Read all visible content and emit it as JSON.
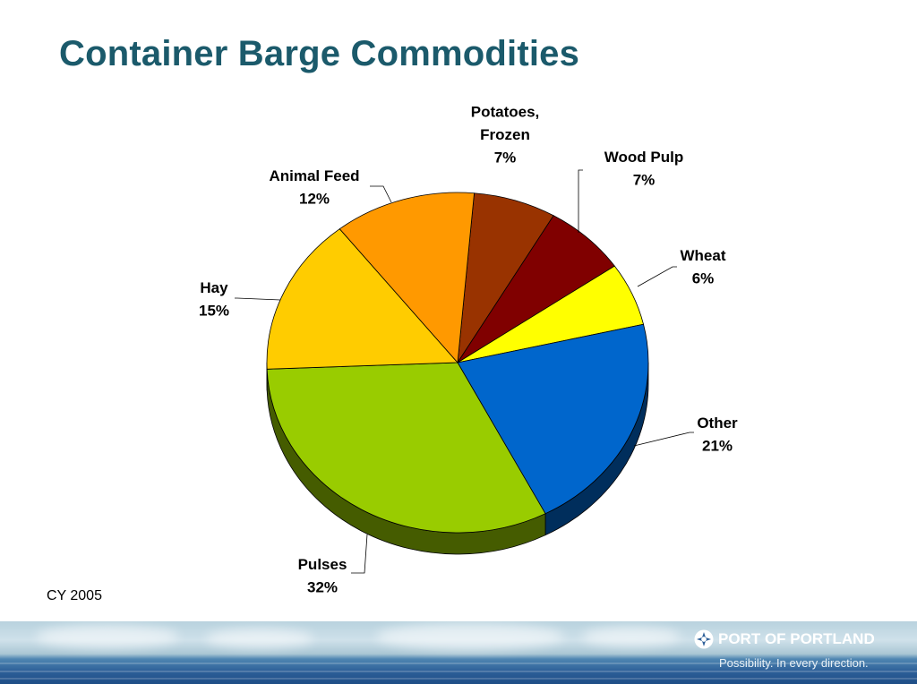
{
  "slide": {
    "title": "Container Barge Commodities",
    "note": "CY 2005"
  },
  "footer": {
    "brand": "PORT OF PORTLAND",
    "tagline": "Possibility. In every direction.",
    "logo_icon": "port-of-portland-logo-icon"
  },
  "chart_data": {
    "type": "pie",
    "style": "3d-tilted",
    "unit": "%",
    "slices": [
      {
        "label": "Potatoes, Frozen",
        "value": 7,
        "color": "#993300"
      },
      {
        "label": "Wood Pulp",
        "value": 7,
        "color": "#800000"
      },
      {
        "label": "Wheat",
        "value": 6,
        "color": "#ffff00"
      },
      {
        "label": "Other",
        "value": 21,
        "color": "#0066cc"
      },
      {
        "label": "Pulses",
        "value": 32,
        "color": "#99cc00"
      },
      {
        "label": "Hay",
        "value": 15,
        "color": "#ffcc00"
      },
      {
        "label": "Animal Feed",
        "value": 12,
        "color": "#ff9900"
      }
    ],
    "data_labels": [
      {
        "lines": [
          "Potatoes,",
          "Frozen"
        ],
        "value_text": "7%"
      },
      {
        "lines": [
          "Wood Pulp"
        ],
        "value_text": "7%"
      },
      {
        "lines": [
          "Wheat"
        ],
        "value_text": "6%"
      },
      {
        "lines": [
          "Other"
        ],
        "value_text": "21%"
      },
      {
        "lines": [
          "Pulses"
        ],
        "value_text": "32%"
      },
      {
        "lines": [
          "Hay"
        ],
        "value_text": "15%"
      },
      {
        "lines": [
          "Animal Feed"
        ],
        "value_text": "12%"
      }
    ]
  }
}
